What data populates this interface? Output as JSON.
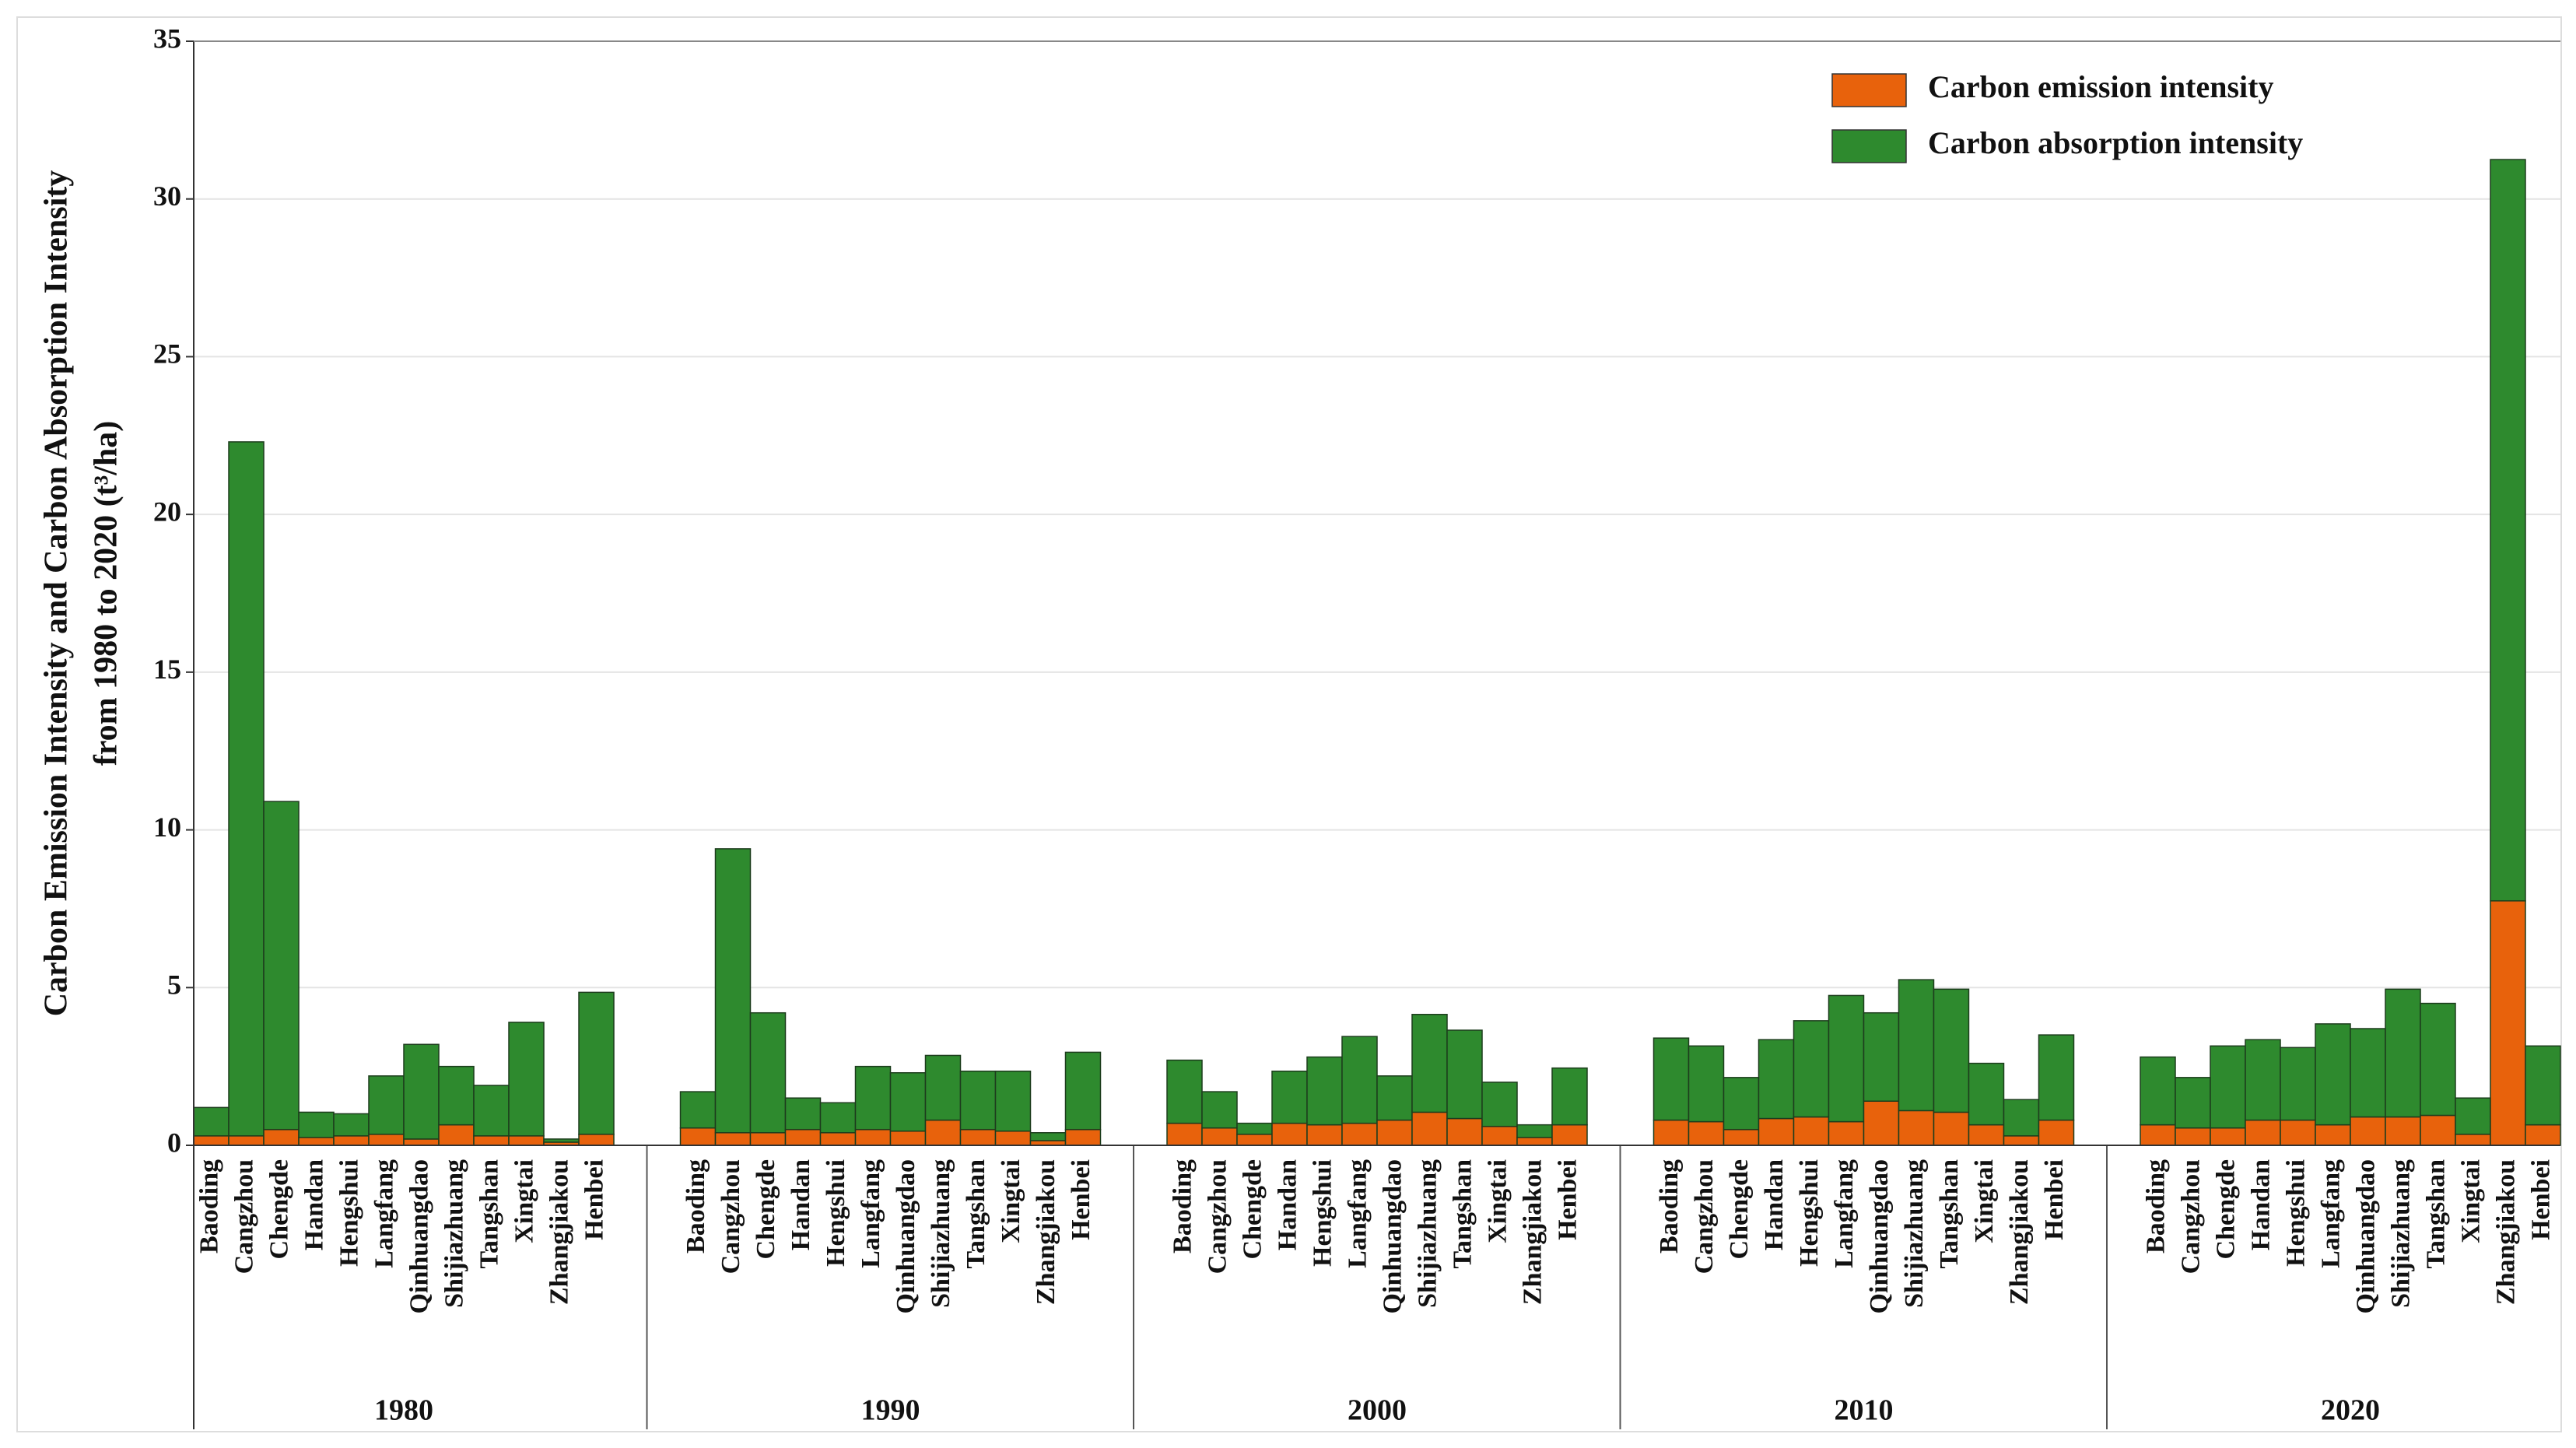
{
  "chart_data": {
    "type": "stacked-bar",
    "ylabel": [
      "Carbon Emission Intensity and Carbon Absorption Intensity",
      "from 1980 to 2020  (t³/ha)"
    ],
    "groups": [
      "1980",
      "1990",
      "2000",
      "2010",
      "2020"
    ],
    "categories": [
      "Baoding",
      "Cangzhou",
      "Chengde",
      "Handan",
      "Hengshui",
      "Langfang",
      "Qinhuangdao",
      "Shijiazhuang",
      "Tangshan",
      "Xingtai",
      "Zhangjiakou",
      "Henbei"
    ],
    "series": [
      {
        "name": "Carbon emission intensity",
        "color": "#e8620c",
        "values": [
          [
            0.3,
            0.3,
            0.5,
            0.25,
            0.3,
            0.35,
            0.2,
            0.65,
            0.3,
            0.3,
            0.1,
            0.35
          ],
          [
            0.55,
            0.4,
            0.4,
            0.5,
            0.4,
            0.5,
            0.45,
            0.8,
            0.5,
            0.45,
            0.15,
            0.5
          ],
          [
            0.7,
            0.55,
            0.35,
            0.7,
            0.65,
            0.7,
            0.8,
            1.05,
            0.85,
            0.6,
            0.25,
            0.65
          ],
          [
            0.8,
            0.75,
            0.5,
            0.85,
            0.9,
            0.75,
            1.4,
            1.1,
            1.05,
            0.65,
            0.3,
            0.8
          ],
          [
            0.65,
            0.55,
            0.55,
            0.8,
            0.8,
            0.65,
            0.9,
            0.9,
            0.95,
            0.35,
            7.75,
            0.65
          ]
        ]
      },
      {
        "name": "Carbon absorption intensity",
        "color": "#2e8a2e",
        "values": [
          [
            0.9,
            22.0,
            10.4,
            0.8,
            0.7,
            1.85,
            3.0,
            1.85,
            1.6,
            3.6,
            0.1,
            4.5
          ],
          [
            1.15,
            9.0,
            3.8,
            1.0,
            0.95,
            2.0,
            1.85,
            2.05,
            1.85,
            1.9,
            0.25,
            2.45
          ],
          [
            2.0,
            1.15,
            0.35,
            1.65,
            2.15,
            2.75,
            1.4,
            3.1,
            2.8,
            1.4,
            0.4,
            1.8
          ],
          [
            2.6,
            2.4,
            1.65,
            2.5,
            3.05,
            4.0,
            2.8,
            4.15,
            3.9,
            1.95,
            1.15,
            2.7
          ],
          [
            2.15,
            1.6,
            2.6,
            2.55,
            2.3,
            3.2,
            2.8,
            4.05,
            3.55,
            1.15,
            23.5,
            2.5
          ]
        ]
      }
    ],
    "ylim": [
      0,
      35
    ],
    "yticks": [
      0,
      5,
      10,
      15,
      20,
      25,
      30,
      35
    ],
    "grid": true,
    "legend": "top-right"
  }
}
